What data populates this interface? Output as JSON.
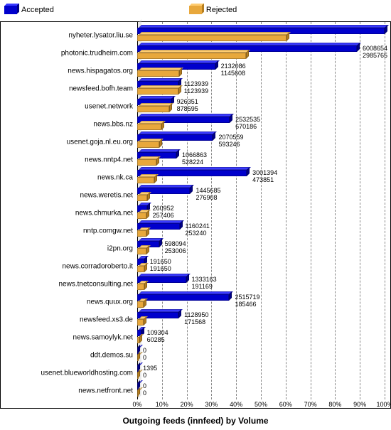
{
  "chart": {
    "type": "bar-horizontal-grouped-3d",
    "title": "Outgoing feeds (innfeed) by Volume",
    "background_color": "#ffffff",
    "grid_color": "#888888",
    "font_family": "Arial",
    "label_fontsize": 10,
    "value_fontsize": 9,
    "title_fontsize": 12,
    "x_axis": {
      "min": 0,
      "max": 100,
      "tick_step": 10,
      "unit": "%",
      "ticks": [
        "0%",
        "10%",
        "20%",
        "30%",
        "40%",
        "50%",
        "60%",
        "70%",
        "80%",
        "90%",
        "100%"
      ]
    },
    "legend": [
      {
        "label": "Accepted",
        "color_front": "#0000cc",
        "color_top": "#3a3aff",
        "color_side": "#000088"
      },
      {
        "label": "Rejected",
        "color_front": "#e8a83c",
        "color_top": "#ffcd72",
        "color_side": "#b57e20"
      }
    ],
    "series_colors": {
      "accepted": {
        "front": "#0000cc",
        "top": "#3a3aff",
        "side": "#000088"
      },
      "rejected": {
        "front": "#e8a83c",
        "top": "#ffcd72",
        "side": "#b57e20"
      }
    },
    "max_total": 6770134,
    "rows": [
      {
        "label": "nyheter.lysator.liu.se",
        "accepted": 6770134,
        "rejected": 4089768,
        "accepted_pct": 100.0,
        "rejected_pct": 60.4
      },
      {
        "label": "photonic.trudheim.com",
        "accepted": 6008654,
        "rejected": 2985765,
        "accepted_pct": 88.8,
        "rejected_pct": 44.1
      },
      {
        "label": "news.hispagatos.org",
        "accepted": 2132086,
        "rejected": 1145608,
        "accepted_pct": 31.5,
        "rejected_pct": 16.9
      },
      {
        "label": "newsfeed.bofh.team",
        "accepted": 1123939,
        "rejected": 1123939,
        "accepted_pct": 16.6,
        "rejected_pct": 16.6
      },
      {
        "label": "usenet.network",
        "accepted": 926351,
        "rejected": 878595,
        "accepted_pct": 13.7,
        "rejected_pct": 13.0
      },
      {
        "label": "news.bbs.nz",
        "accepted": 2532535,
        "rejected": 670186,
        "accepted_pct": 37.4,
        "rejected_pct": 9.9
      },
      {
        "label": "usenet.goja.nl.eu.org",
        "accepted": 2070559,
        "rejected": 593246,
        "accepted_pct": 30.6,
        "rejected_pct": 8.8
      },
      {
        "label": "news.nntp4.net",
        "accepted": 1066863,
        "rejected": 528224,
        "accepted_pct": 15.8,
        "rejected_pct": 7.8
      },
      {
        "label": "news.nk.ca",
        "accepted": 3001394,
        "rejected": 473851,
        "accepted_pct": 44.3,
        "rejected_pct": 7.0
      },
      {
        "label": "news.weretis.net",
        "accepted": 1445685,
        "rejected": 276908,
        "accepted_pct": 21.4,
        "rejected_pct": 4.1
      },
      {
        "label": "news.chmurka.net",
        "accepted": 260952,
        "rejected": 257406,
        "accepted_pct": 3.9,
        "rejected_pct": 3.8
      },
      {
        "label": "nntp.comgw.net",
        "accepted": 1160241,
        "rejected": 253240,
        "accepted_pct": 17.1,
        "rejected_pct": 3.7
      },
      {
        "label": "i2pn.org",
        "accepted": 598094,
        "rejected": 253006,
        "accepted_pct": 8.8,
        "rejected_pct": 3.7
      },
      {
        "label": "news.corradoroberto.it",
        "accepted": 191650,
        "rejected": 191650,
        "accepted_pct": 2.8,
        "rejected_pct": 2.8
      },
      {
        "label": "news.tnetconsulting.net",
        "accepted": 1333163,
        "rejected": 191169,
        "accepted_pct": 19.7,
        "rejected_pct": 2.8
      },
      {
        "label": "news.quux.org",
        "accepted": 2515719,
        "rejected": 185466,
        "accepted_pct": 37.2,
        "rejected_pct": 2.7
      },
      {
        "label": "newsfeed.xs3.de",
        "accepted": 1128950,
        "rejected": 171568,
        "accepted_pct": 16.7,
        "rejected_pct": 2.5
      },
      {
        "label": "news.samoylyk.net",
        "accepted": 109304,
        "rejected": 60285,
        "accepted_pct": 1.6,
        "rejected_pct": 0.9
      },
      {
        "label": "ddt.demos.su",
        "accepted": 0,
        "rejected": 0,
        "accepted_pct": 0.0,
        "rejected_pct": 0.0
      },
      {
        "label": "usenet.blueworldhosting.com",
        "accepted": 1395,
        "rejected": 0,
        "accepted_pct": 0.02,
        "rejected_pct": 0.0
      },
      {
        "label": "news.netfront.net",
        "accepted": 0,
        "rejected": 0,
        "accepted_pct": 0.0,
        "rejected_pct": 0.0
      }
    ]
  }
}
